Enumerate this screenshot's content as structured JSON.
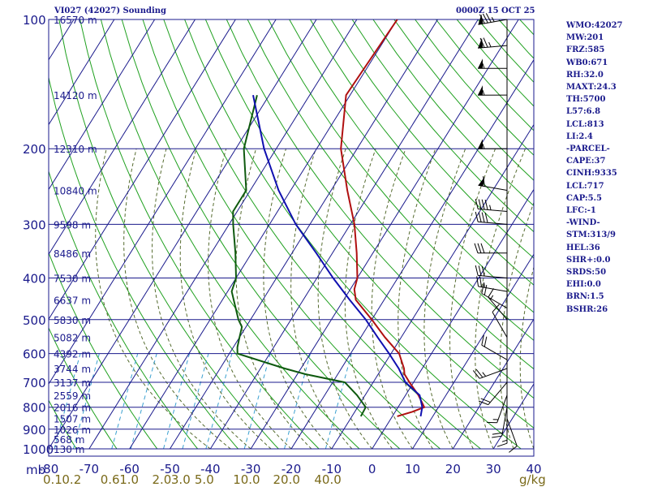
{
  "header": {
    "title": "VI027 (42027) Sounding",
    "timestamp": "0000Z 15 OCT 25"
  },
  "stats": [
    "WMO:42027",
    "MW:201",
    "FRZ:585",
    "WB0:671",
    "RH:32.0",
    "MAXT:24.3",
    "TH:5700",
    "L57:6.8",
    "LCL:813",
    "LI:2.4",
    "-PARCEL-",
    "CAPE:37",
    "CINH:9335",
    "LCL:717",
    "CAP:5.5",
    "LFC:-1",
    "-WIND-",
    "STM:313/9",
    "HEL:36",
    "SHR+:0.0",
    "SRDS:50",
    "EHI:0.0",
    "BRN:1.5",
    "BSHR:26"
  ],
  "colors": {
    "frame": "#1a1a8c",
    "temp": "#b01010",
    "dewpoint": "#0f5a0f",
    "parcel": "#1010b0",
    "dry_adiabat": "#1fa01f",
    "moist_adiabat": "#556b2f",
    "mixing_ratio": "#3aa0d0",
    "wind": "#000000"
  },
  "chart_data": {
    "type": "line",
    "title": "VI027 (42027) Sounding",
    "xlabel": "",
    "ylabel": "mb",
    "xlim": [
      -80,
      40
    ],
    "ylim": [
      1000,
      100
    ],
    "temp_ticks": [
      -80,
      -70,
      -60,
      -50,
      -40,
      -30,
      -20,
      -10,
      0,
      10,
      20,
      30,
      40
    ],
    "pressure_ticks": [
      100,
      200,
      300,
      400,
      500,
      600,
      700,
      800,
      900,
      1000
    ],
    "height_labels": [
      {
        "p": 100,
        "label": "16570 m"
      },
      {
        "p": 150,
        "label": "14120 m"
      },
      {
        "p": 200,
        "label": "12310 m"
      },
      {
        "p": 250,
        "label": "10840 m"
      },
      {
        "p": 300,
        "label": "9598 m"
      },
      {
        "p": 350,
        "label": "8486 m"
      },
      {
        "p": 400,
        "label": "7530 m"
      },
      {
        "p": 450,
        "label": "6637 m"
      },
      {
        "p": 500,
        "label": "5830 m"
      },
      {
        "p": 550,
        "label": "5082 m"
      },
      {
        "p": 600,
        "label": "4392 m"
      },
      {
        "p": 650,
        "label": "3744 m"
      },
      {
        "p": 700,
        "label": "3137 m"
      },
      {
        "p": 750,
        "label": "2559 m"
      },
      {
        "p": 800,
        "label": "2016 m"
      },
      {
        "p": 850,
        "label": "1507 m"
      },
      {
        "p": 900,
        "label": "1026 m"
      },
      {
        "p": 950,
        "label": "568 m"
      },
      {
        "p": 1000,
        "label": "130 m"
      }
    ],
    "mixing_ratio_labels": [
      {
        "label": "0.1",
        "t": -78.6
      },
      {
        "label": "0.2",
        "t": -73.9
      },
      {
        "label": "0.6",
        "t": -64.4
      },
      {
        "label": "1.0",
        "t": -59.7
      },
      {
        "label": "2.0",
        "t": -51.6
      },
      {
        "label": "3.0",
        "t": -46.9
      },
      {
        "label": "5.0",
        "t": -41.1
      },
      {
        "label": "10.0",
        "t": -31.6
      },
      {
        "label": "20.0",
        "t": -21.7
      },
      {
        "label": "40.0",
        "t": -11.5
      }
    ],
    "mixing_ratio_unit": "g/kg",
    "series": [
      {
        "key": "temperature",
        "points": [
          [
            100,
            -60
          ],
          [
            150,
            -61
          ],
          [
            200,
            -54
          ],
          [
            250,
            -46
          ],
          [
            300,
            -39
          ],
          [
            350,
            -34
          ],
          [
            400,
            -30
          ],
          [
            425,
            -29
          ],
          [
            450,
            -27
          ],
          [
            500,
            -20
          ],
          [
            550,
            -14
          ],
          [
            600,
            -8
          ],
          [
            650,
            -4.5
          ],
          [
            670,
            -3.5
          ],
          [
            700,
            -1
          ],
          [
            750,
            3.2
          ],
          [
            800,
            6.5
          ],
          [
            820,
            4.2
          ],
          [
            840,
            1.2
          ]
        ]
      },
      {
        "key": "dewpoint",
        "points": [
          [
            150,
            -83
          ],
          [
            200,
            -78
          ],
          [
            250,
            -71
          ],
          [
            280,
            -71
          ],
          [
            300,
            -69
          ],
          [
            350,
            -64
          ],
          [
            400,
            -60
          ],
          [
            430,
            -59
          ],
          [
            500,
            -53
          ],
          [
            520,
            -51
          ],
          [
            550,
            -50
          ],
          [
            580,
            -49
          ],
          [
            600,
            -48
          ],
          [
            650,
            -34
          ],
          [
            670,
            -28
          ],
          [
            700,
            -17
          ],
          [
            750,
            -12
          ],
          [
            800,
            -8
          ],
          [
            840,
            -7.8
          ]
        ]
      },
      {
        "key": "parcel",
        "points": [
          [
            150,
            -84
          ],
          [
            200,
            -73
          ],
          [
            250,
            -63
          ],
          [
            300,
            -53.5
          ],
          [
            350,
            -44
          ],
          [
            400,
            -36
          ],
          [
            450,
            -28.5
          ],
          [
            500,
            -21.5
          ],
          [
            550,
            -15.8
          ],
          [
            600,
            -10.5
          ],
          [
            650,
            -5.8
          ],
          [
            700,
            -2
          ],
          [
            750,
            3.5
          ],
          [
            800,
            6
          ],
          [
            840,
            7
          ]
        ]
      }
    ],
    "wind_barbs": [
      {
        "p": 100,
        "dir": 260,
        "speed": 85
      },
      {
        "p": 115,
        "dir": 265,
        "speed": 75
      },
      {
        "p": 130,
        "dir": 270,
        "speed": 55
      },
      {
        "p": 150,
        "dir": 270,
        "speed": 55
      },
      {
        "p": 200,
        "dir": 270,
        "speed": 55
      },
      {
        "p": 250,
        "dir": 280,
        "speed": 60
      },
      {
        "p": 280,
        "dir": 275,
        "speed": 45
      },
      {
        "p": 300,
        "dir": 275,
        "speed": 40
      },
      {
        "p": 350,
        "dir": 270,
        "speed": 30
      },
      {
        "p": 400,
        "dir": 275,
        "speed": 30
      },
      {
        "p": 430,
        "dir": 280,
        "speed": 25
      },
      {
        "p": 470,
        "dir": 300,
        "speed": 20
      },
      {
        "p": 500,
        "dir": 320,
        "speed": 15
      },
      {
        "p": 550,
        "dir": 330,
        "speed": 10
      },
      {
        "p": 620,
        "dir": 300,
        "speed": 20
      },
      {
        "p": 650,
        "dir": 250,
        "speed": 25
      },
      {
        "p": 700,
        "dir": 220,
        "speed": 20
      },
      {
        "p": 750,
        "dir": 200,
        "speed": 15
      },
      {
        "p": 800,
        "dir": 190,
        "speed": 20
      },
      {
        "p": 830,
        "dir": 180,
        "speed": 15
      },
      {
        "p": 850,
        "dir": 160,
        "speed": 10
      }
    ]
  }
}
